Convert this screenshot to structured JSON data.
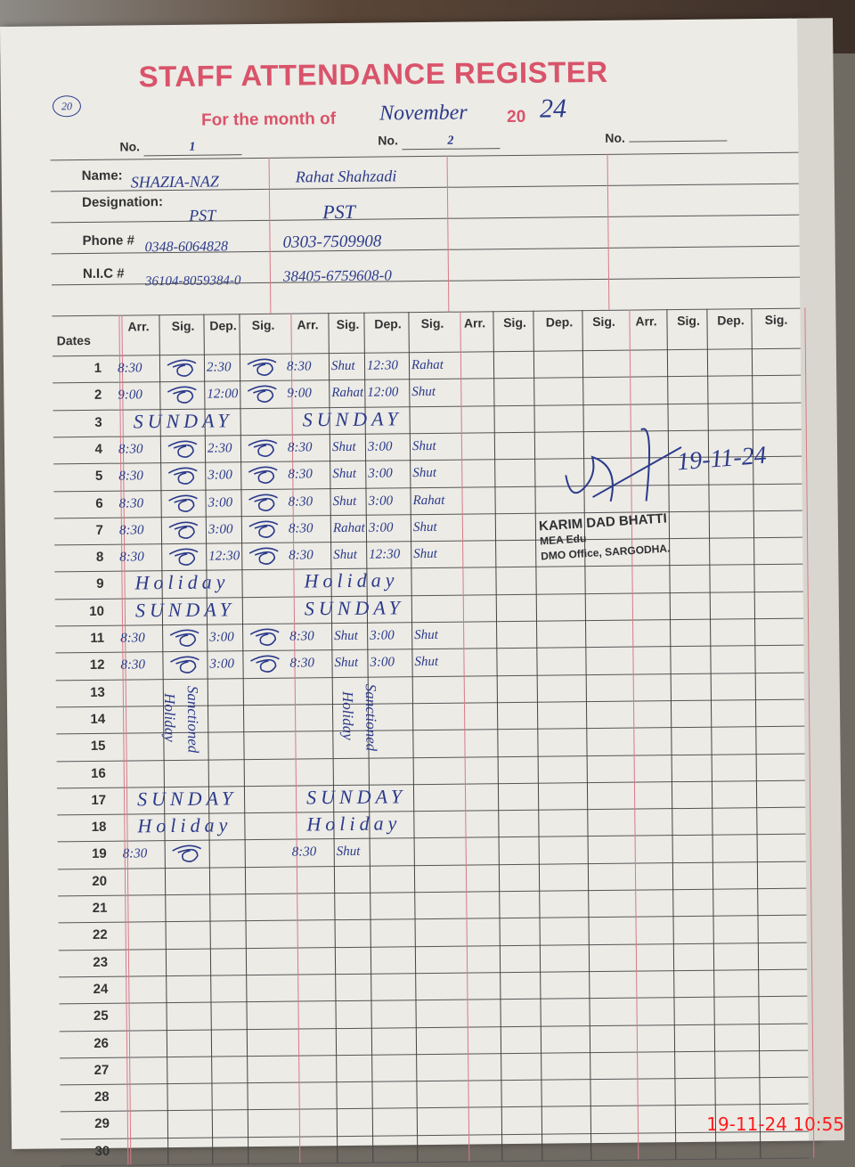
{
  "header": {
    "page_number": "20",
    "title": "STAFF ATTENDANCE REGISTER",
    "month_label": "For the month of",
    "month_value": "November",
    "year_prefix": "20",
    "year_value": "24",
    "no_label": "No.",
    "numbers": [
      "1",
      "2",
      ""
    ]
  },
  "labels": {
    "name": "Name:",
    "designation": "Designation:",
    "phone": "Phone #",
    "nic": "N.I.C #"
  },
  "staff": [
    {
      "name": "SHAZIA-NAZ",
      "designation": "PST",
      "phone": "0348-6064828",
      "nic": "36104-8059384-0"
    },
    {
      "name": "Rahat Shahzadi",
      "designation": "PST",
      "phone": "0303-7509908",
      "nic": "38405-6759608-0"
    },
    {
      "name": "",
      "designation": "",
      "phone": "",
      "nic": ""
    },
    {
      "name": "",
      "designation": "",
      "phone": "",
      "nic": ""
    }
  ],
  "columns": {
    "dates": "Dates",
    "sub": [
      "Arr.",
      "Sig.",
      "Dep.",
      "Sig."
    ]
  },
  "rows": [
    {
      "d": "1",
      "a": [
        "8:30",
        "~sig",
        "2:30",
        "~sig"
      ],
      "b": [
        "8:30",
        "Shut",
        "12:30",
        "Rahat"
      ]
    },
    {
      "d": "2",
      "a": [
        "9:00",
        "~sig",
        "12:00",
        "~sig"
      ],
      "b": [
        "9:00",
        "Rahat",
        "12:00",
        "Shut"
      ]
    },
    {
      "d": "3",
      "an": "SUNDAY",
      "bn": "SUNDAY"
    },
    {
      "d": "4",
      "a": [
        "8:30",
        "~sig",
        "2:30",
        "~sig"
      ],
      "b": [
        "8:30",
        "Shut",
        "3:00",
        "Shut"
      ]
    },
    {
      "d": "5",
      "a": [
        "8:30",
        "~sig",
        "3:00",
        "~sig"
      ],
      "b": [
        "8:30",
        "Shut",
        "3:00",
        "Shut"
      ]
    },
    {
      "d": "6",
      "a": [
        "8:30",
        "~sig",
        "3:00",
        "~sig"
      ],
      "b": [
        "8:30",
        "Shut",
        "3:00",
        "Rahat"
      ]
    },
    {
      "d": "7",
      "a": [
        "8:30",
        "~sig",
        "3:00",
        "~sig"
      ],
      "b": [
        "8:30",
        "Rahat",
        "3:00",
        "Shut"
      ]
    },
    {
      "d": "8",
      "a": [
        "8:30",
        "~sig",
        "12:30",
        "~sig"
      ],
      "b": [
        "8:30",
        "Shut",
        "12:30",
        "Shut"
      ]
    },
    {
      "d": "9",
      "an": "Holiday",
      "bn": "Holiday"
    },
    {
      "d": "10",
      "an": "SUNDAY",
      "bn": "SUNDAY"
    },
    {
      "d": "11",
      "a": [
        "8:30",
        "~sig",
        "3:00",
        "~sig"
      ],
      "b": [
        "8:30",
        "Shut",
        "3:00",
        "Shut"
      ]
    },
    {
      "d": "12",
      "a": [
        "8:30",
        "~sig",
        "3:00",
        "~sig"
      ],
      "b": [
        "8:30",
        "Shut",
        "3:00",
        "Shut"
      ]
    },
    {
      "d": "13"
    },
    {
      "d": "14"
    },
    {
      "d": "15"
    },
    {
      "d": "16"
    },
    {
      "d": "17",
      "an": "SUNDAY",
      "bn": "SUNDAY"
    },
    {
      "d": "18",
      "an": "Holiday",
      "bn": "Holiday"
    },
    {
      "d": "19",
      "a": [
        "8:30",
        "~sig",
        "",
        ""
      ],
      "b": [
        "8:30",
        "Shut",
        "",
        ""
      ]
    },
    {
      "d": "20"
    },
    {
      "d": "21"
    },
    {
      "d": "22"
    },
    {
      "d": "23"
    },
    {
      "d": "24"
    },
    {
      "d": "25"
    },
    {
      "d": "26"
    },
    {
      "d": "27"
    },
    {
      "d": "28"
    },
    {
      "d": "29"
    },
    {
      "d": "30"
    }
  ],
  "sanctioned_note": {
    "line1": "Sanctioned",
    "line2": "Holiday"
  },
  "stamp": {
    "name": "KARIM DAD BHATTI",
    "title": "MEA Edu",
    "office": "DMO Office, SARGODHA.",
    "signed_date": "19-11-24"
  },
  "camera_timestamp": "19-11-24  10:55",
  "colors": {
    "print_red": "#d9536a",
    "ink_blue": "#2b3a8a",
    "timestamp_red": "#ff1c1c"
  }
}
